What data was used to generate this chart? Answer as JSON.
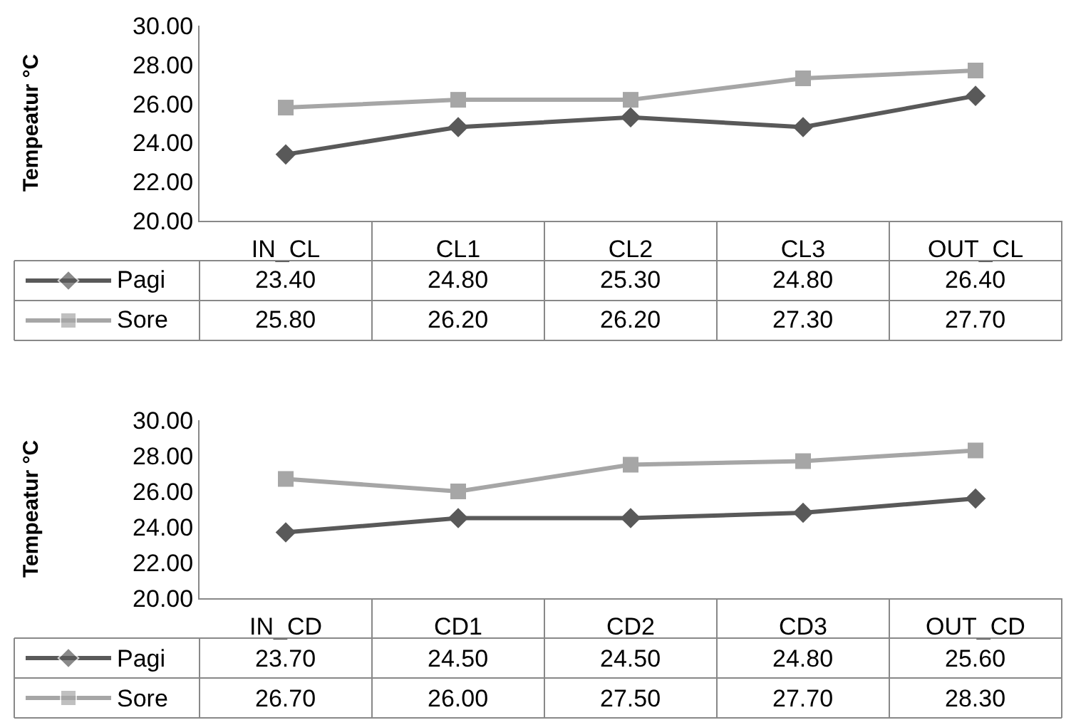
{
  "chart_data": [
    {
      "type": "line",
      "ylabel": "Tempeatur °C",
      "categories": [
        "IN_CL",
        "CL1",
        "CL2",
        "CL3",
        "OUT_CL"
      ],
      "ylim": [
        20,
        30
      ],
      "yticks": [
        {
          "value": 20,
          "label": "20.00"
        },
        {
          "value": 22,
          "label": "22.00"
        },
        {
          "value": 24,
          "label": "24.00"
        },
        {
          "value": 26,
          "label": "26.00"
        },
        {
          "value": 28,
          "label": "28.00"
        },
        {
          "value": 30,
          "label": "30.00"
        }
      ],
      "grid": false,
      "legend": "bottom left",
      "series": [
        {
          "name": "Pagi",
          "color": "#595959",
          "marker": "diamond",
          "values": [
            23.4,
            24.8,
            25.3,
            24.8,
            26.4
          ],
          "value_labels": [
            "23.40",
            "24.80",
            "25.30",
            "24.80",
            "26.40"
          ]
        },
        {
          "name": "Sore",
          "color": "#a6a6a6",
          "marker": "square",
          "values": [
            25.8,
            26.2,
            26.2,
            27.3,
            27.7
          ],
          "value_labels": [
            "25.80",
            "26.20",
            "26.20",
            "27.30",
            "27.70"
          ]
        }
      ]
    },
    {
      "type": "line",
      "ylabel": "Tempeatur °C",
      "categories": [
        "IN_CD",
        "CD1",
        "CD2",
        "CD3",
        "OUT_CD"
      ],
      "ylim": [
        20,
        30
      ],
      "yticks": [
        {
          "value": 20,
          "label": "20.00"
        },
        {
          "value": 22,
          "label": "22.00"
        },
        {
          "value": 24,
          "label": "24.00"
        },
        {
          "value": 26,
          "label": "26.00"
        },
        {
          "value": 28,
          "label": "28.00"
        },
        {
          "value": 30,
          "label": "30.00"
        }
      ],
      "grid": false,
      "legend": "bottom left",
      "series": [
        {
          "name": "Pagi",
          "color": "#595959",
          "marker": "diamond",
          "values": [
            23.7,
            24.5,
            24.5,
            24.8,
            25.6
          ],
          "value_labels": [
            "23.70",
            "24.50",
            "24.50",
            "24.80",
            "25.60"
          ]
        },
        {
          "name": "Sore",
          "color": "#a6a6a6",
          "marker": "square",
          "values": [
            26.7,
            26.0,
            27.5,
            27.7,
            28.3
          ],
          "value_labels": [
            "26.70",
            "26.00",
            "27.50",
            "27.70",
            "28.30"
          ]
        }
      ]
    }
  ]
}
